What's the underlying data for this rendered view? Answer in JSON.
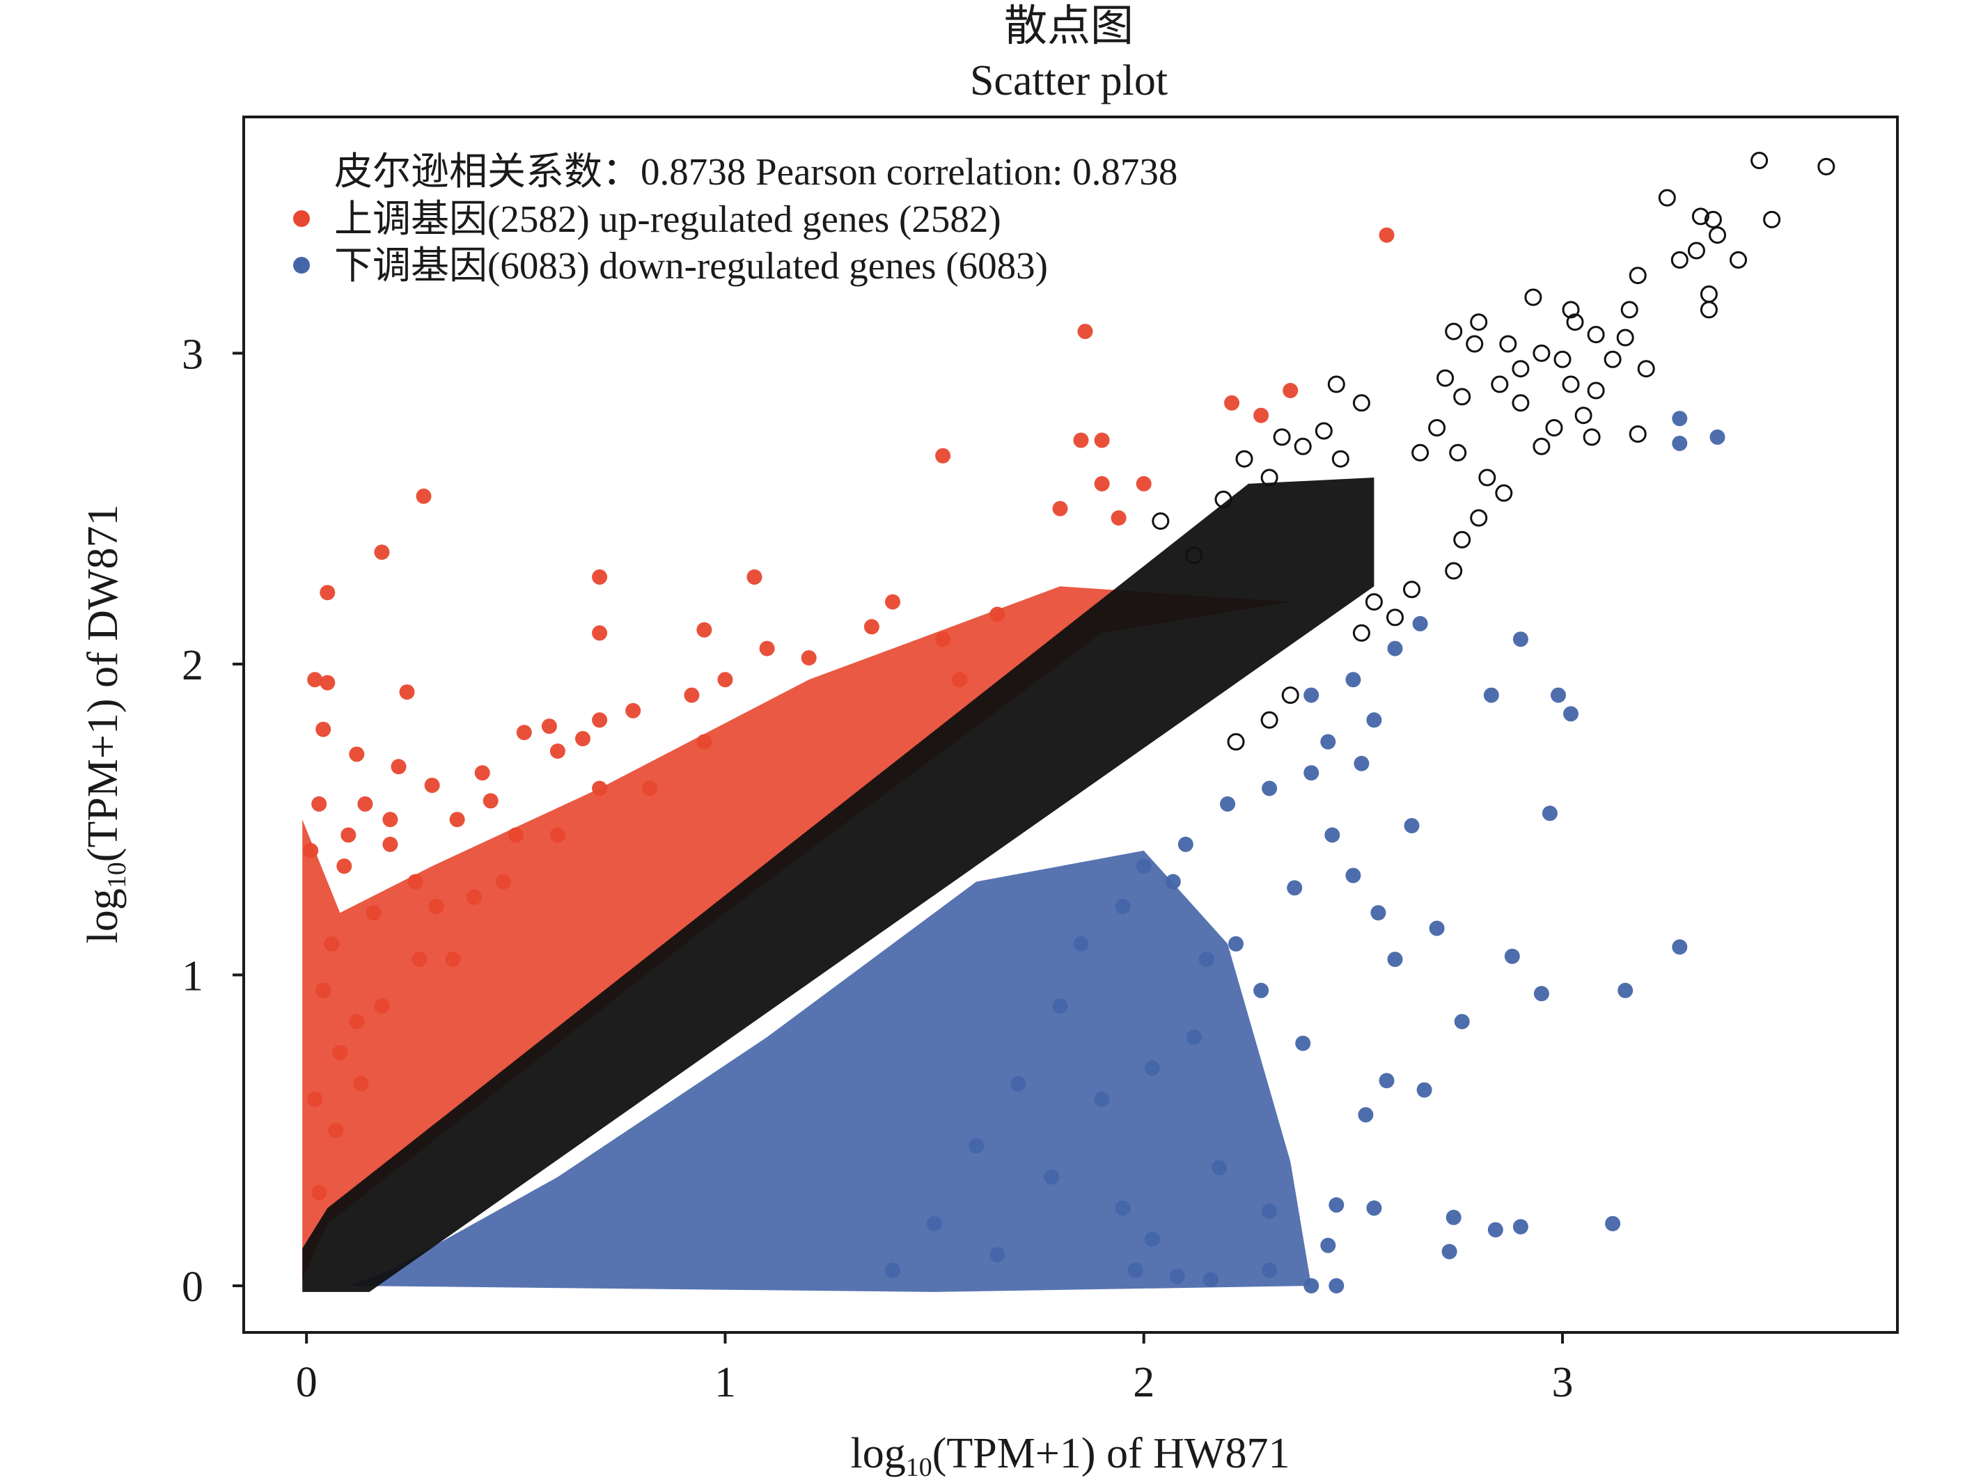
{
  "chart_data": {
    "type": "scatter",
    "title": "散点图",
    "subtitle": "Scatter plot",
    "xlabel": {
      "prefix": "log",
      "subscript": "10",
      "suffix": "(TPM+1) of HW871"
    },
    "ylabel": {
      "prefix": "log",
      "subscript": "10",
      "suffix": "(TPM+1) of DW871"
    },
    "xlim": [
      -0.15,
      3.8
    ],
    "ylim": [
      -0.15,
      3.76
    ],
    "x_ticks": [
      0,
      1,
      2,
      3
    ],
    "y_ticks": [
      0,
      1,
      2,
      3
    ],
    "x_tick_labels": [
      "0",
      "1",
      "2",
      "3"
    ],
    "y_tick_labels": [
      "0",
      "1",
      "2",
      "3"
    ],
    "grid": false,
    "legend_position": "top-left",
    "annotation": "皮尔逊相关系数：0.8738  Pearson correlation: 0.8738",
    "pearson_correlation": 0.8738,
    "series": [
      {
        "name": "上调基因(2582)  up-regulated genes (2582)",
        "count": 2582,
        "color": "#e8472f",
        "marker": "filled-circle",
        "points": [
          [
            2.58,
            3.38
          ],
          [
            1.86,
            3.07
          ],
          [
            0.28,
            2.54
          ],
          [
            0.18,
            2.36
          ],
          [
            0.05,
            2.23
          ],
          [
            0.7,
            2.28
          ],
          [
            1.07,
            2.28
          ],
          [
            0.24,
            1.91
          ],
          [
            0.7,
            2.1
          ],
          [
            0.95,
            2.11
          ],
          [
            1.52,
            2.67
          ],
          [
            1.85,
            2.72
          ],
          [
            1.9,
            2.72
          ],
          [
            2.35,
            2.88
          ],
          [
            2.21,
            2.84
          ],
          [
            2.28,
            2.8
          ],
          [
            1.8,
            2.5
          ],
          [
            1.9,
            2.58
          ],
          [
            2.0,
            2.58
          ],
          [
            1.94,
            2.47
          ],
          [
            0.02,
            1.95
          ],
          [
            0.05,
            1.94
          ],
          [
            0.04,
            1.79
          ],
          [
            0.12,
            1.71
          ],
          [
            0.22,
            1.67
          ],
          [
            0.3,
            1.61
          ],
          [
            0.42,
            1.65
          ],
          [
            0.44,
            1.56
          ],
          [
            0.52,
            1.78
          ],
          [
            0.58,
            1.8
          ],
          [
            0.6,
            1.72
          ],
          [
            0.66,
            1.76
          ],
          [
            0.7,
            1.82
          ],
          [
            0.36,
            1.5
          ],
          [
            0.14,
            1.55
          ],
          [
            0.1,
            1.45
          ],
          [
            0.09,
            1.35
          ],
          [
            0.2,
            1.42
          ],
          [
            0.26,
            1.3
          ],
          [
            0.16,
            1.2
          ],
          [
            0.31,
            1.22
          ],
          [
            0.78,
            1.85
          ],
          [
            0.92,
            1.9
          ],
          [
            1.0,
            1.95
          ],
          [
            1.1,
            2.05
          ],
          [
            1.2,
            2.02
          ],
          [
            1.35,
            2.12
          ],
          [
            1.4,
            2.2
          ],
          [
            1.52,
            2.08
          ],
          [
            1.56,
            1.95
          ],
          [
            1.65,
            2.16
          ],
          [
            0.03,
            1.55
          ],
          [
            0.01,
            1.4
          ],
          [
            0.06,
            1.1
          ],
          [
            0.04,
            0.95
          ],
          [
            0.08,
            0.75
          ],
          [
            0.02,
            0.6
          ],
          [
            0.12,
            0.85
          ],
          [
            0.27,
            1.05
          ],
          [
            0.4,
            1.25
          ],
          [
            0.5,
            1.45
          ],
          [
            0.82,
            1.6
          ],
          [
            0.95,
            1.75
          ],
          [
            0.03,
            0.3
          ],
          [
            0.07,
            0.5
          ],
          [
            0.13,
            0.65
          ],
          [
            0.18,
            0.9
          ],
          [
            0.35,
            1.05
          ],
          [
            0.47,
            1.3
          ],
          [
            0.6,
            1.45
          ],
          [
            0.2,
            1.5
          ],
          [
            0.7,
            1.6
          ]
        ],
        "cloud": {
          "from": [
            0.0,
            0.0
          ],
          "to": [
            2.35,
            2.65
          ],
          "width": 0.22,
          "offset": 0.24
        }
      },
      {
        "name": "下调基因(6083)  down-regulated genes (6083)",
        "count": 6083,
        "color": "#4565a8",
        "marker": "filled-circle",
        "points": [
          [
            3.28,
            2.79
          ],
          [
            3.28,
            2.71
          ],
          [
            3.37,
            2.73
          ],
          [
            2.9,
            2.08
          ],
          [
            2.66,
            2.13
          ],
          [
            2.83,
            1.9
          ],
          [
            2.99,
            1.9
          ],
          [
            3.02,
            1.84
          ],
          [
            2.97,
            1.52
          ],
          [
            3.28,
            1.09
          ],
          [
            3.15,
            0.95
          ],
          [
            2.88,
            1.06
          ],
          [
            2.7,
            1.15
          ],
          [
            2.6,
            1.05
          ],
          [
            2.76,
            0.85
          ],
          [
            2.95,
            0.94
          ],
          [
            2.67,
            0.63
          ],
          [
            2.53,
            0.55
          ],
          [
            2.58,
            0.66
          ],
          [
            2.64,
            1.48
          ],
          [
            2.5,
            1.32
          ],
          [
            2.45,
            1.45
          ],
          [
            2.36,
            1.28
          ],
          [
            2.22,
            1.1
          ],
          [
            2.15,
            1.05
          ],
          [
            2.07,
            1.3
          ],
          [
            1.95,
            1.22
          ],
          [
            2.28,
            0.95
          ],
          [
            2.38,
            0.78
          ],
          [
            2.12,
            0.8
          ],
          [
            2.02,
            0.7
          ],
          [
            1.9,
            0.6
          ],
          [
            2.18,
            0.38
          ],
          [
            2.3,
            0.24
          ],
          [
            2.46,
            0.26
          ],
          [
            2.55,
            0.25
          ],
          [
            2.44,
            0.13
          ],
          [
            2.4,
            0.0
          ],
          [
            2.46,
            0.0
          ],
          [
            2.74,
            0.22
          ],
          [
            2.84,
            0.18
          ],
          [
            2.9,
            0.19
          ],
          [
            3.12,
            0.2
          ],
          [
            2.73,
            0.11
          ],
          [
            1.98,
            0.05
          ],
          [
            2.08,
            0.03
          ],
          [
            2.16,
            0.02
          ],
          [
            2.3,
            0.05
          ],
          [
            2.56,
            1.2
          ],
          [
            2.52,
            1.68
          ],
          [
            2.44,
            1.75
          ],
          [
            2.3,
            1.6
          ],
          [
            2.2,
            1.55
          ],
          [
            2.1,
            1.42
          ],
          [
            2.0,
            1.35
          ],
          [
            1.85,
            1.1
          ],
          [
            1.8,
            0.9
          ],
          [
            1.7,
            0.65
          ],
          [
            1.6,
            0.45
          ],
          [
            1.78,
            0.35
          ],
          [
            1.95,
            0.25
          ],
          [
            2.02,
            0.15
          ],
          [
            1.5,
            0.2
          ],
          [
            1.65,
            0.1
          ],
          [
            1.4,
            0.05
          ],
          [
            2.4,
            1.9
          ],
          [
            2.5,
            1.95
          ],
          [
            2.6,
            2.05
          ],
          [
            2.55,
            1.82
          ],
          [
            2.4,
            1.65
          ]
        ],
        "cloud": {
          "from": [
            0.1,
            0.0
          ],
          "to": [
            2.35,
            1.75
          ],
          "width": 0.26,
          "offset": -0.28
        }
      },
      {
        "name": "",
        "color": "#111111",
        "marker": "open-circle",
        "points": [
          [
            3.47,
            3.62
          ],
          [
            3.63,
            3.6
          ],
          [
            3.25,
            3.5
          ],
          [
            3.33,
            3.44
          ],
          [
            3.36,
            3.43
          ],
          [
            3.5,
            3.43
          ],
          [
            3.37,
            3.38
          ],
          [
            3.32,
            3.33
          ],
          [
            3.28,
            3.3
          ],
          [
            3.42,
            3.3
          ],
          [
            3.18,
            3.25
          ],
          [
            3.35,
            3.19
          ],
          [
            3.35,
            3.14
          ],
          [
            3.16,
            3.14
          ],
          [
            3.02,
            3.14
          ],
          [
            3.03,
            3.1
          ],
          [
            2.93,
            3.18
          ],
          [
            2.74,
            3.07
          ],
          [
            2.79,
            3.03
          ],
          [
            2.8,
            3.1
          ],
          [
            2.87,
            3.03
          ],
          [
            2.95,
            3.0
          ],
          [
            3.08,
            3.06
          ],
          [
            3.0,
            2.98
          ],
          [
            3.15,
            3.05
          ],
          [
            3.12,
            2.98
          ],
          [
            3.2,
            2.95
          ],
          [
            3.02,
            2.9
          ],
          [
            2.9,
            2.95
          ],
          [
            2.72,
            2.92
          ],
          [
            2.76,
            2.86
          ],
          [
            2.85,
            2.9
          ],
          [
            2.9,
            2.84
          ],
          [
            3.05,
            2.8
          ],
          [
            3.08,
            2.88
          ],
          [
            2.98,
            2.76
          ],
          [
            2.95,
            2.7
          ],
          [
            3.07,
            2.73
          ],
          [
            3.18,
            2.74
          ],
          [
            2.52,
            2.84
          ],
          [
            2.46,
            2.9
          ],
          [
            2.66,
            2.68
          ],
          [
            2.75,
            2.68
          ],
          [
            2.82,
            2.6
          ],
          [
            2.86,
            2.55
          ],
          [
            2.8,
            2.47
          ],
          [
            2.76,
            2.4
          ],
          [
            2.74,
            2.3
          ],
          [
            2.64,
            2.24
          ],
          [
            2.6,
            2.15
          ],
          [
            2.55,
            2.2
          ],
          [
            2.52,
            2.1
          ],
          [
            2.3,
            2.6
          ],
          [
            2.24,
            2.66
          ],
          [
            2.19,
            2.53
          ],
          [
            2.12,
            2.35
          ],
          [
            2.04,
            2.46
          ],
          [
            2.43,
            2.75
          ],
          [
            2.38,
            2.7
          ],
          [
            2.33,
            2.73
          ],
          [
            2.47,
            2.66
          ],
          [
            2.7,
            2.76
          ],
          [
            2.35,
            1.9
          ],
          [
            2.3,
            1.82
          ],
          [
            2.22,
            1.75
          ]
        ],
        "cloud": {
          "from": [
            0.0,
            0.0
          ],
          "to": [
            2.5,
            2.5
          ],
          "width": 0.2,
          "offset": 0.0
        }
      }
    ]
  }
}
